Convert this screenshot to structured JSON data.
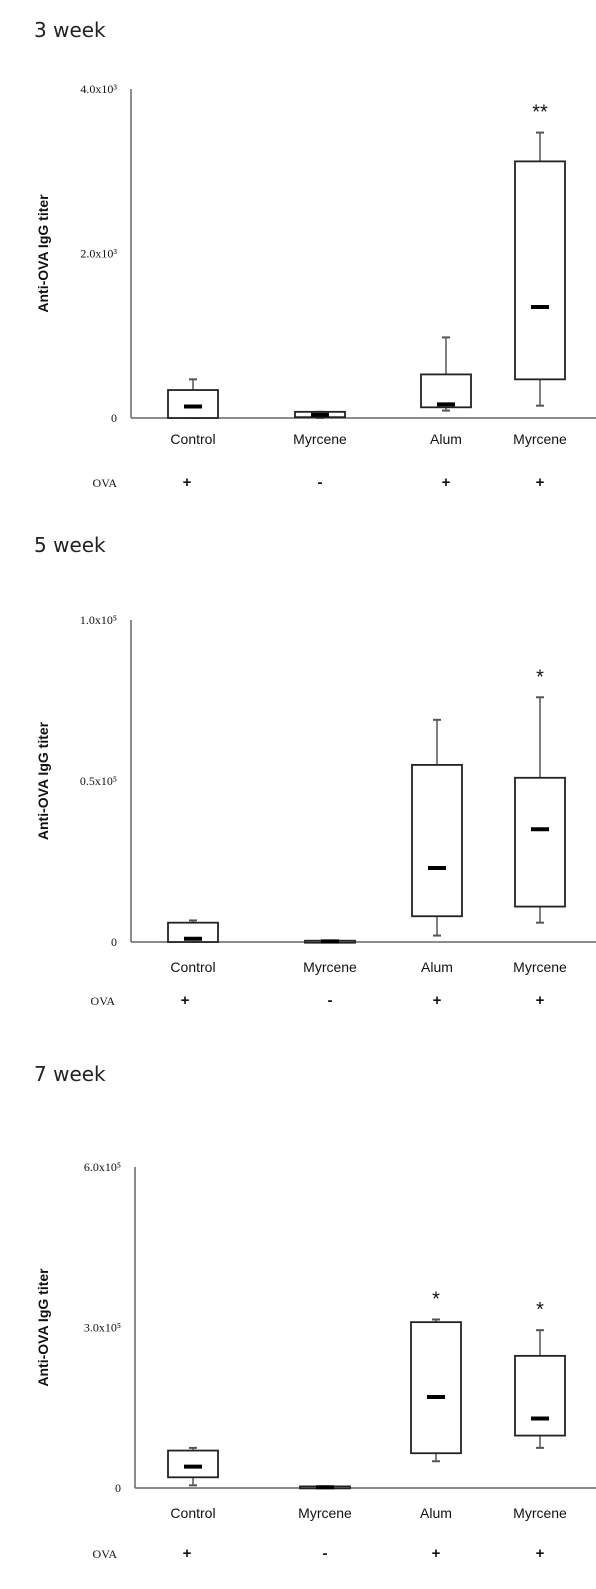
{
  "chart_data": [
    {
      "type": "boxplot",
      "title": "3 week",
      "ylabel": "Anti-OVA IgG titer",
      "ylim": [
        0,
        4000
      ],
      "yticks": [
        {
          "value": 0,
          "label": "0"
        },
        {
          "value": 2000,
          "label": "2.0x10³"
        },
        {
          "value": 4000,
          "label": "4.0x10³"
        }
      ],
      "categories": [
        "Control",
        "Myrcene",
        "Alum",
        "Myrcene"
      ],
      "ova_label": "OVA",
      "ova": [
        "+",
        "-",
        "+",
        "+"
      ],
      "boxes": [
        {
          "whisker_low": 0,
          "q1": 0,
          "median": 140,
          "q3": 340,
          "whisker_high": 470
        },
        {
          "whisker_low": 0,
          "q1": 10,
          "median": 40,
          "q3": 75,
          "whisker_high": 75
        },
        {
          "whisker_low": 90,
          "q1": 130,
          "median": 165,
          "q3": 530,
          "whisker_high": 980
        },
        {
          "whisker_low": 150,
          "q1": 470,
          "median": 1350,
          "q3": 3120,
          "whisker_high": 3470
        }
      ],
      "significance": [
        "",
        "",
        "",
        "**"
      ]
    },
    {
      "type": "boxplot",
      "title": "5 week",
      "ylabel": "Anti-OVA IgG titer",
      "ylim": [
        0,
        100000
      ],
      "yticks": [
        {
          "value": 0,
          "label": "0"
        },
        {
          "value": 50000,
          "label": "0.5x10⁵"
        },
        {
          "value": 100000,
          "label": "1.0x10⁵"
        }
      ],
      "categories": [
        "Control",
        "Myrcene",
        "Alum",
        "Myrcene"
      ],
      "ova_label": "OVA",
      "ova": [
        "+",
        "-",
        "+",
        "+"
      ],
      "boxes": [
        {
          "whisker_low": 0,
          "q1": 0,
          "median": 1000,
          "q3": 6000,
          "whisker_high": 6700
        },
        {
          "whisker_low": 0,
          "q1": 0,
          "median": 200,
          "q3": 400,
          "whisker_high": 400
        },
        {
          "whisker_low": 2000,
          "q1": 8000,
          "median": 23000,
          "q3": 55000,
          "whisker_high": 69000
        },
        {
          "whisker_low": 6000,
          "q1": 11000,
          "median": 35000,
          "q3": 51000,
          "whisker_high": 76000
        }
      ],
      "significance": [
        "",
        "",
        "",
        "*"
      ]
    },
    {
      "type": "boxplot",
      "title": "7 week",
      "ylabel": "Anti-OVA IgG titer",
      "ylim": [
        0,
        600000
      ],
      "yticks": [
        {
          "value": 0,
          "label": "0"
        },
        {
          "value": 300000,
          "label": "3.0x10⁵"
        },
        {
          "value": 600000,
          "label": "6.0x10⁵"
        }
      ],
      "categories": [
        "Control",
        "Myrcene",
        "Alum",
        "Myrcene"
      ],
      "ova_label": "OVA",
      "ova": [
        "+",
        "-",
        "+",
        "+"
      ],
      "boxes": [
        {
          "whisker_low": 5000,
          "q1": 20000,
          "median": 40000,
          "q3": 70000,
          "whisker_high": 75000
        },
        {
          "whisker_low": 0,
          "q1": 0,
          "median": 1500,
          "q3": 3000,
          "whisker_high": 3000
        },
        {
          "whisker_low": 50000,
          "q1": 65000,
          "median": 170000,
          "q3": 310000,
          "whisker_high": 315000
        },
        {
          "whisker_low": 75000,
          "q1": 98000,
          "median": 130000,
          "q3": 247000,
          "whisker_high": 295000
        }
      ],
      "significance": [
        "",
        "",
        "*",
        "*"
      ]
    }
  ]
}
